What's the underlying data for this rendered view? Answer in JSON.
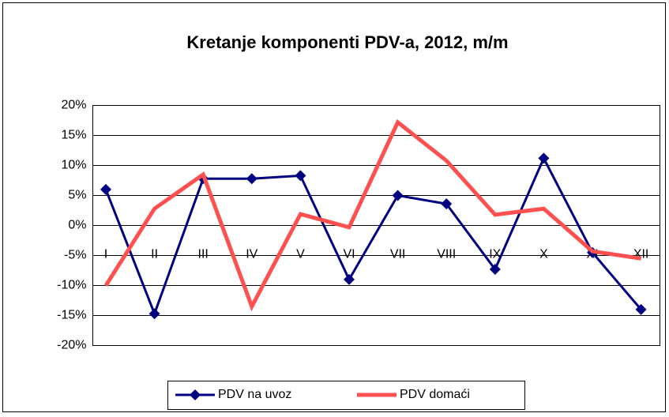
{
  "chart_data": {
    "type": "line",
    "title": "Kretanje komponenti PDV-a,  2012, m/m",
    "categories": [
      "I",
      "II",
      "III",
      "IV",
      "V",
      "VI",
      "VII",
      "VIII",
      "IX",
      "X",
      "XI",
      "XII"
    ],
    "series": [
      {
        "name": "PDV na uvoz",
        "color": "#000080",
        "values": [
          6,
          -14.7,
          7.8,
          7.8,
          8.3,
          -9,
          5,
          3.6,
          -7.3,
          11.2,
          -4.5,
          -14
        ]
      },
      {
        "name": "PDV domaći",
        "color": "#ff5050",
        "values": [
          -10,
          2.8,
          8.5,
          -13.5,
          1.9,
          -0.3,
          17.2,
          10.8,
          1.8,
          2.8,
          -4.3,
          -5.5
        ]
      }
    ],
    "ylim": [
      -20,
      20
    ],
    "yticks": [
      {
        "value": -20,
        "label": "-20%"
      },
      {
        "value": -15,
        "label": "-15%"
      },
      {
        "value": -10,
        "label": "-10%"
      },
      {
        "value": -5,
        "label": "-5%"
      },
      {
        "value": 0,
        "label": "0%"
      },
      {
        "value": 5,
        "label": "5%"
      },
      {
        "value": 10,
        "label": "10%"
      },
      {
        "value": 15,
        "label": "15%"
      },
      {
        "value": 20,
        "label": "20%"
      }
    ],
    "grid": true,
    "legend": "bottom"
  }
}
